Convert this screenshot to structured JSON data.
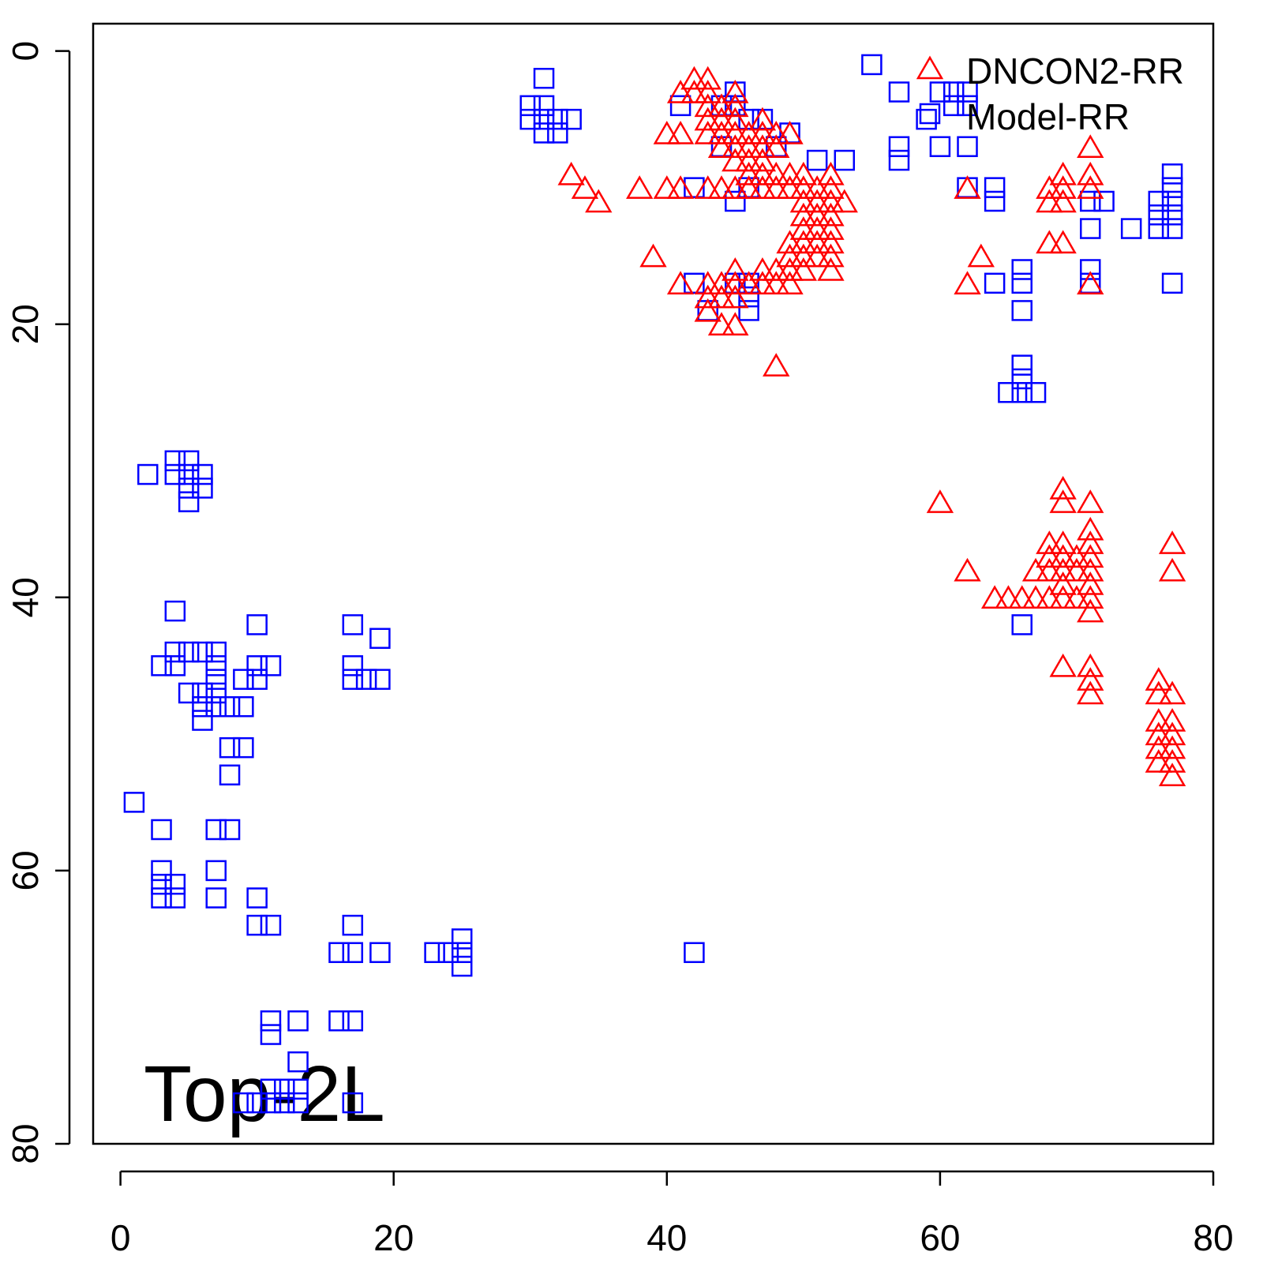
{
  "chart_data": {
    "type": "scatter",
    "annotation": "Top-2L",
    "xlim": [
      -2,
      80
    ],
    "ylim": [
      -2,
      80
    ],
    "y_inverted": true,
    "xticks": [
      0,
      20,
      40,
      60,
      80
    ],
    "yticks": [
      0,
      20,
      40,
      60,
      80
    ],
    "legend": "top-right",
    "series": [
      {
        "name": "DNCON2-RR",
        "color": "#ff0000",
        "marker": "triangle",
        "x": [
          42,
          43,
          41,
          42,
          43,
          45,
          43,
          44,
          45,
          43,
          44,
          45,
          47,
          40,
          41,
          43,
          44,
          45,
          46,
          47,
          48,
          49,
          44,
          45,
          46,
          47,
          48,
          45,
          46,
          47,
          33,
          46,
          47,
          48,
          49,
          50,
          52,
          34,
          38,
          40,
          41,
          43,
          44,
          45,
          46,
          47,
          48,
          49,
          50,
          51,
          52,
          35,
          50,
          51,
          52,
          53,
          50,
          51,
          52,
          50,
          51,
          52,
          49,
          50,
          51,
          52,
          39,
          49,
          50,
          51,
          52,
          63,
          45,
          47,
          48,
          49,
          50,
          52,
          41,
          43,
          44,
          45,
          46,
          47,
          48,
          49,
          62,
          71,
          43,
          44,
          45,
          43,
          44,
          45,
          48,
          71,
          69,
          71,
          62,
          68,
          69,
          71,
          68,
          69,
          68,
          69,
          60,
          69,
          69,
          71,
          71,
          68,
          69,
          71,
          77,
          68,
          69,
          70,
          71,
          62,
          67,
          68,
          69,
          70,
          71,
          77,
          69,
          71,
          64,
          65,
          66,
          67,
          68,
          69,
          70,
          71,
          71,
          69,
          71,
          71,
          76,
          71,
          76,
          77,
          76,
          77,
          76,
          77,
          76,
          77,
          76,
          77,
          77
        ],
        "y": [
          2,
          2,
          3,
          3,
          3,
          3,
          4,
          4,
          4,
          5,
          5,
          5,
          5,
          6,
          6,
          6,
          6,
          6,
          6,
          6,
          6,
          6,
          7,
          7,
          7,
          7,
          7,
          8,
          8,
          8,
          9,
          9,
          9,
          9,
          9,
          9,
          9,
          10,
          10,
          10,
          10,
          10,
          10,
          10,
          10,
          10,
          10,
          10,
          10,
          10,
          10,
          11,
          11,
          11,
          11,
          11,
          12,
          12,
          12,
          13,
          13,
          13,
          14,
          14,
          14,
          14,
          15,
          15,
          15,
          15,
          15,
          15,
          16,
          16,
          16,
          16,
          16,
          16,
          17,
          17,
          17,
          17,
          17,
          17,
          17,
          17,
          17,
          17,
          18,
          18,
          18,
          19,
          20,
          20,
          23,
          7,
          9,
          9,
          10,
          10,
          10,
          10,
          11,
          11,
          14,
          14,
          33,
          32,
          33,
          33,
          35,
          36,
          36,
          36,
          36,
          37,
          37,
          37,
          37,
          38,
          38,
          38,
          38,
          38,
          38,
          38,
          39,
          39,
          40,
          40,
          40,
          40,
          40,
          40,
          40,
          40,
          41,
          45,
          45,
          46,
          46,
          47,
          47,
          47,
          49,
          49,
          50,
          50,
          51,
          51,
          52,
          52,
          53
        ]
      },
      {
        "name": "Model-RR",
        "color": "#0000ff",
        "marker": "square",
        "x": [
          31,
          30,
          31,
          30,
          31,
          32,
          33,
          31,
          32,
          41,
          45,
          44,
          45,
          44,
          46,
          47,
          49,
          48,
          51,
          53,
          42,
          45,
          46,
          55,
          57,
          57,
          57,
          59,
          60,
          61,
          62,
          61,
          62,
          60,
          62,
          62,
          64,
          64,
          64,
          66,
          66,
          66,
          66,
          66,
          65,
          66,
          67,
          66,
          71,
          72,
          71,
          71,
          71,
          74,
          76,
          76,
          76,
          77,
          77,
          77,
          77,
          77,
          77,
          42,
          43,
          45,
          46,
          46,
          46,
          2,
          4,
          5,
          4,
          5,
          6,
          5,
          6,
          5,
          4,
          10,
          17,
          19,
          4,
          5,
          6,
          7,
          3,
          4,
          7,
          10,
          11,
          17,
          7,
          9,
          10,
          17,
          18,
          19,
          5,
          6,
          7,
          6,
          7,
          8,
          9,
          6,
          8,
          9,
          8,
          1,
          3,
          7,
          8,
          3,
          7,
          3,
          4,
          3,
          4,
          7,
          10,
          10,
          11,
          17,
          16,
          17,
          19,
          23,
          24,
          25,
          42,
          25,
          25,
          11,
          13,
          16,
          17,
          11,
          13,
          11,
          12,
          13,
          9,
          10,
          11,
          12,
          13,
          17
        ],
        "y": [
          2,
          4,
          4,
          5,
          5,
          5,
          5,
          6,
          6,
          4,
          3,
          4,
          4,
          7,
          5,
          5,
          6,
          7,
          8,
          8,
          10,
          11,
          10,
          1,
          3,
          7,
          8,
          5,
          3,
          3,
          3,
          4,
          4,
          7,
          7,
          10,
          10,
          11,
          17,
          16,
          17,
          19,
          23,
          24,
          25,
          25,
          25,
          42,
          11,
          11,
          13,
          16,
          17,
          13,
          11,
          12,
          13,
          9,
          10,
          11,
          12,
          13,
          17,
          17,
          19,
          17,
          17,
          18,
          19,
          31,
          30,
          30,
          31,
          31,
          31,
          32,
          32,
          33,
          41,
          42,
          42,
          43,
          44,
          44,
          44,
          44,
          45,
          45,
          45,
          45,
          45,
          45,
          46,
          46,
          46,
          46,
          46,
          46,
          47,
          47,
          47,
          48,
          48,
          48,
          48,
          49,
          51,
          51,
          53,
          55,
          57,
          57,
          57,
          60,
          60,
          61,
          61,
          62,
          62,
          62,
          62,
          64,
          64,
          64,
          66,
          66,
          66,
          66,
          66,
          66,
          66,
          65,
          67,
          71,
          71,
          71,
          71,
          72,
          74,
          76,
          76,
          76,
          77,
          77,
          77,
          77,
          77,
          77
        ]
      }
    ]
  }
}
